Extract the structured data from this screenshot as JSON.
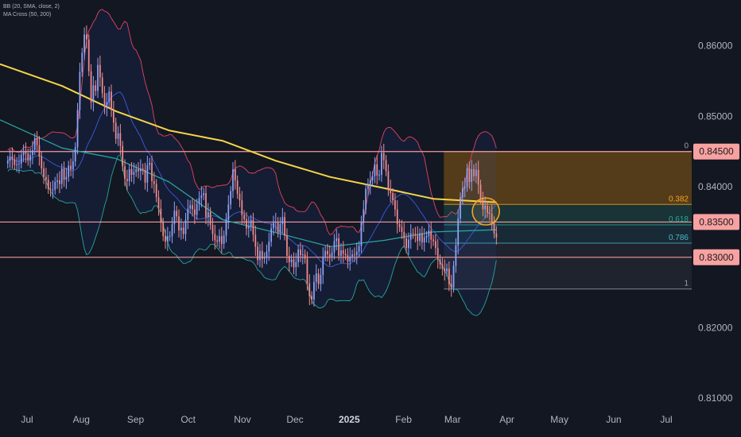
{
  "colors": {
    "background": "#131722",
    "up_candle": "#8fa3f7",
    "down_candle": "#f28b8b",
    "ma50": "#26a69a",
    "ma200": "#f5d547",
    "bb_basis": "#3b5bdb",
    "bb_band": "#e0455f",
    "bb_lower": "#26a69a",
    "sr_line": "#f49b9b",
    "sr_label_bg": "#f7a1a1",
    "sr_label_text": "#1a1a1a",
    "fib_zone_top": "#8a5a12",
    "fib_zone_mid": "#1f4a47",
    "fib_zone_low": "#1e3a45",
    "fib_zone_bottom": "#2a2e39",
    "highlight_circle": "#f5a623",
    "text": "#b2b5be"
  },
  "legend": {
    "bb": "BB (20, SMA, close, 2)",
    "ma_cross": "MA Cross (50, 200)"
  },
  "chart_data": {
    "type": "candlestick",
    "ylim": [
      0.8045,
      0.8665
    ],
    "y_ticks": [
      "0.86000",
      "0.85000",
      "0.84000",
      "0.82000",
      "0.81000"
    ],
    "y_tick_values": [
      0.86,
      0.85,
      0.84,
      0.82,
      0.81
    ],
    "x_ticks": [
      "Jul",
      "Aug",
      "Sep",
      "Oct",
      "Nov",
      "Dec",
      "2025",
      "Feb",
      "Mar",
      "Apr",
      "May",
      "Jun",
      "Jul"
    ],
    "x_tick_days": [
      0,
      31,
      62,
      92,
      123,
      153,
      184,
      215,
      243,
      274,
      304,
      335,
      365
    ],
    "x_start": "2024-06-20",
    "x_end": "2025-07-14",
    "series_start": "2024-06-20",
    "series_end": "2025-03-26",
    "closes": [
      0.8437,
      0.8443,
      0.8439,
      0.8431,
      0.8432,
      0.8433,
      0.8445,
      0.845,
      0.8447,
      0.8437,
      0.8445,
      0.8452,
      0.8469,
      0.8459,
      0.8443,
      0.8426,
      0.8414,
      0.841,
      0.8397,
      0.8396,
      0.8396,
      0.8407,
      0.8409,
      0.8404,
      0.8426,
      0.841,
      0.8414,
      0.843,
      0.8425,
      0.8436,
      0.8456,
      0.8509,
      0.8563,
      0.859,
      0.8616,
      0.8609,
      0.8564,
      0.852,
      0.8544,
      0.8536,
      0.8573,
      0.8555,
      0.8533,
      0.8513,
      0.852,
      0.8535,
      0.8509,
      0.8491,
      0.8468,
      0.8476,
      0.8458,
      0.8429,
      0.8411,
      0.8408,
      0.8425,
      0.8417,
      0.8421,
      0.8425,
      0.8422,
      0.8426,
      0.8424,
      0.8406,
      0.8431,
      0.8434,
      0.8408,
      0.8404,
      0.8385,
      0.8369,
      0.8349,
      0.833,
      0.8322,
      0.833,
      0.833,
      0.8347,
      0.8366,
      0.8358,
      0.8338,
      0.8342,
      0.8333,
      0.8353,
      0.8369,
      0.8374,
      0.8368,
      0.836,
      0.8376,
      0.8384,
      0.8388,
      0.8391,
      0.8357,
      0.8364,
      0.8346,
      0.8333,
      0.8324,
      0.8322,
      0.833,
      0.8319,
      0.8331,
      0.8353,
      0.8375,
      0.8394,
      0.8425,
      0.8409,
      0.839,
      0.8381,
      0.836,
      0.8354,
      0.8341,
      0.8344,
      0.8353,
      0.8332,
      0.8315,
      0.8296,
      0.8309,
      0.8298,
      0.83,
      0.8308,
      0.8322,
      0.8341,
      0.8349,
      0.835,
      0.8335,
      0.8347,
      0.8357,
      0.8331,
      0.8302,
      0.8293,
      0.8297,
      0.8286,
      0.8293,
      0.8311,
      0.8303,
      0.8304,
      0.8298,
      0.8263,
      0.8245,
      0.824,
      0.8265,
      0.8277,
      0.8262,
      0.8275,
      0.8301,
      0.8309,
      0.8304,
      0.8301,
      0.8307,
      0.8323,
      0.8327,
      0.8302,
      0.831,
      0.8305,
      0.8303,
      0.8294,
      0.8301,
      0.8304,
      0.8303,
      0.8308,
      0.8316,
      0.8349,
      0.8368,
      0.8397,
      0.8402,
      0.8409,
      0.8415,
      0.8432,
      0.8416,
      0.8417,
      0.8448,
      0.8438,
      0.8422,
      0.8397,
      0.8391,
      0.8381,
      0.8368,
      0.8347,
      0.8343,
      0.8336,
      0.8327,
      0.8313,
      0.8325,
      0.8334,
      0.8333,
      0.8331,
      0.8323,
      0.8334,
      0.8321,
      0.8328,
      0.833,
      0.8338,
      0.8325,
      0.8323,
      0.8313,
      0.8297,
      0.829,
      0.8284,
      0.828,
      0.8284,
      0.8262,
      0.8257,
      0.8288,
      0.8317,
      0.8355,
      0.8385,
      0.8398,
      0.84,
      0.8426,
      0.8407,
      0.8425,
      0.8415,
      0.8424,
      0.8403,
      0.8383,
      0.8368,
      0.8373,
      0.8363,
      0.8362,
      0.8351,
      0.8334,
      0.8328
    ],
    "ma200_points": [
      [
        0,
        0.8574
      ],
      [
        31,
        0.8543
      ],
      [
        62,
        0.8507
      ],
      [
        92,
        0.848
      ],
      [
        123,
        0.8465
      ],
      [
        153,
        0.8437
      ],
      [
        184,
        0.8414
      ],
      [
        215,
        0.8398
      ],
      [
        243,
        0.8383
      ],
      [
        279,
        0.8378
      ]
    ],
    "ma50_points": [
      [
        0,
        0.8495
      ],
      [
        31,
        0.8455
      ],
      [
        62,
        0.844
      ],
      [
        92,
        0.8407
      ],
      [
        123,
        0.8353
      ],
      [
        153,
        0.8335
      ],
      [
        184,
        0.8315
      ],
      [
        215,
        0.8324
      ],
      [
        243,
        0.8336
      ],
      [
        279,
        0.8339
      ]
    ],
    "fib_levels": [
      {
        "label": "0",
        "value": 0.845
      },
      {
        "label": "0.382",
        "value": 0.8375
      },
      {
        "label": "0.618",
        "value": 0.8346
      },
      {
        "label": "0.786",
        "value": 0.832
      },
      {
        "label": "1",
        "value": 0.8255
      }
    ],
    "fib_start_day": 249,
    "fib_end_day": 313,
    "horizontal_levels": [
      {
        "label": "0.84500",
        "value": 0.845
      },
      {
        "label": "0.83500",
        "value": 0.835
      },
      {
        "label": "0.83000",
        "value": 0.83
      }
    ],
    "highlight": {
      "day": 273,
      "value": 0.8365
    }
  }
}
